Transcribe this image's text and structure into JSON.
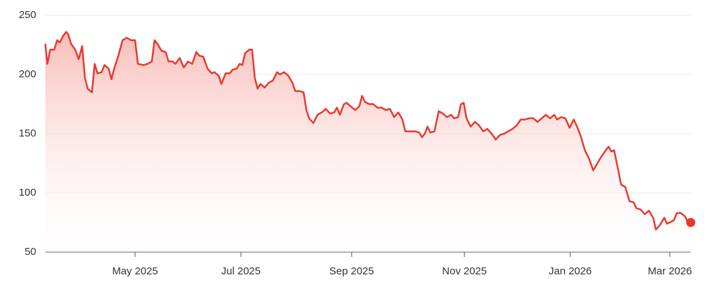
{
  "chart_data": {
    "type": "line",
    "x": [
      0,
      3,
      7,
      13,
      17,
      21,
      25,
      30,
      33,
      37,
      43,
      48,
      53,
      57,
      61,
      67,
      71,
      75,
      81,
      85,
      91,
      95,
      99,
      105,
      111,
      117,
      123,
      129,
      133,
      141,
      147,
      153,
      157,
      161,
      167,
      173,
      177,
      183,
      187,
      193,
      199,
      205,
      211,
      217,
      221,
      227,
      233,
      239,
      243,
      249,
      253,
      259,
      265,
      269,
      275,
      279,
      283,
      287,
      293,
      297,
      301,
      305,
      309,
      315,
      321,
      327,
      333,
      337,
      343,
      349,
      355,
      359,
      365,
      371,
      375,
      379,
      385,
      391,
      397,
      403,
      409,
      415,
      419,
      423,
      429,
      433,
      439,
      445,
      451,
      455,
      459,
      465,
      471,
      477,
      483,
      489,
      495,
      501,
      507,
      513,
      517,
      523,
      531,
      537,
      541,
      545,
      549,
      553,
      559,
      565,
      571,
      577,
      583,
      587,
      593,
      597,
      601,
      605,
      611,
      617,
      623,
      629,
      635,
      641,
      647,
      653,
      659,
      665,
      671,
      677,
      683,
      689,
      695,
      701,
      707,
      713,
      719,
      725,
      731,
      735,
      741,
      747,
      753,
      759,
      763,
      769,
      775,
      781,
      787,
      793,
      799,
      805,
      809,
      813,
      817,
      823,
      827,
      833,
      839,
      845,
      849,
      855,
      861,
      867,
      873,
      877,
      883,
      889,
      893,
      897,
      903,
      907,
      913,
      919,
      923,
      927
    ],
    "values": [
      226,
      209,
      221,
      221,
      229,
      227,
      232,
      236,
      234,
      226,
      221,
      213,
      224,
      197,
      188,
      185,
      209,
      201,
      202,
      208,
      205,
      196,
      205,
      216,
      229,
      231,
      229,
      229,
      209,
      208,
      209,
      211,
      229,
      226,
      220,
      219,
      211,
      211,
      209,
      214,
      206,
      211,
      209,
      219,
      216,
      215,
      205,
      201,
      202,
      199,
      192,
      201,
      201,
      204,
      205,
      209,
      208,
      218,
      221,
      221,
      197,
      188,
      192,
      189,
      193,
      195,
      202,
      200,
      202,
      199,
      193,
      186,
      186,
      185,
      170,
      163,
      159,
      166,
      168,
      171,
      167,
      168,
      172,
      166,
      175,
      176,
      173,
      170,
      173,
      182,
      177,
      175,
      175,
      172,
      172,
      170,
      171,
      164,
      168,
      162,
      152,
      152,
      152,
      151,
      147,
      150,
      156,
      151,
      152,
      169,
      167,
      164,
      166,
      163,
      164,
      175,
      176,
      163,
      156,
      160,
      157,
      152,
      154,
      150,
      145,
      149,
      150,
      152,
      154,
      157,
      162,
      162,
      163,
      163,
      160,
      163,
      166,
      163,
      166,
      162,
      164,
      163,
      155,
      162,
      157,
      148,
      136,
      129,
      119,
      125,
      131,
      136,
      139,
      135,
      136,
      119,
      107,
      105,
      93,
      92,
      87,
      86,
      82,
      85,
      79,
      69,
      73,
      79,
      74,
      75,
      77,
      83,
      83,
      80,
      75,
      75
    ],
    "color": "#e8392f",
    "xlim": [
      0,
      927
    ],
    "xticks": [
      {
        "value": 129,
        "label": "May 2025"
      },
      {
        "value": 281,
        "label": "Jul 2025"
      },
      {
        "value": 440,
        "label": "Sep 2025"
      },
      {
        "value": 602,
        "label": "Nov 2025"
      },
      {
        "value": 754,
        "label": "Jan 2026"
      },
      {
        "value": 897,
        "label": "Mar 2026"
      }
    ],
    "ylim": [
      50,
      250
    ],
    "yticks": [
      50,
      100,
      150,
      200,
      250
    ],
    "grid": true
  }
}
